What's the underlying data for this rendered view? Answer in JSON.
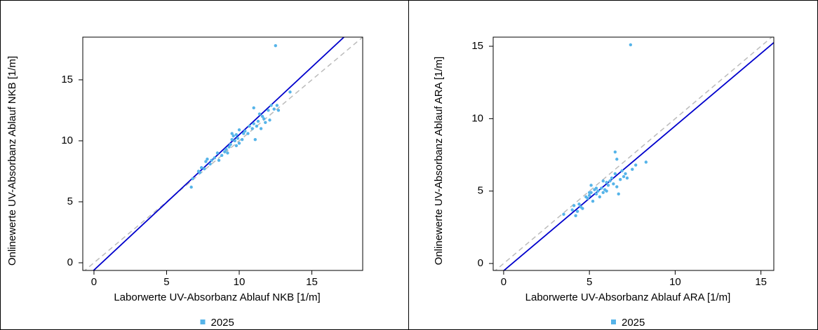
{
  "chart_data": [
    {
      "type": "scatter",
      "x_label": "Laborwerte UV-Absorbanz Ablauf NKB [1/m]",
      "y_label": "Onlinewerte UV-Absorbanz Ablauf NKB [1/m]",
      "xlim": [
        -0.77,
        18.5
      ],
      "ylim": [
        -0.63,
        18.5
      ],
      "xticks": [
        0,
        5,
        10,
        15
      ],
      "yticks": [
        0,
        5,
        10,
        15
      ],
      "x": [
        6.7,
        6.8,
        7.2,
        7.4,
        7.6,
        7.7,
        7.8,
        8.0,
        8.1,
        8.3,
        8.5,
        8.6,
        8.8,
        9.0,
        9.1,
        9.2,
        9.3,
        9.4,
        9.5,
        9.5,
        9.6,
        9.7,
        9.8,
        9.8,
        9.9,
        10.0,
        10.0,
        10.2,
        10.4,
        10.6,
        10.7,
        10.9,
        11.0,
        11.0,
        11.1,
        11.2,
        11.3,
        11.4,
        11.5,
        11.6,
        11.8,
        12.0,
        12.1,
        12.2,
        12.4,
        12.5,
        12.6,
        12.7,
        13.5,
        7.3,
        10.3,
        11.7
      ],
      "series": [
        {
          "name": "2025",
          "color": "#56b4e9",
          "values": [
            6.2,
            6.9,
            7.5,
            7.8,
            7.7,
            8.3,
            8.5,
            8.1,
            8.4,
            8.6,
            9.0,
            8.4,
            8.8,
            9.1,
            9.3,
            9.0,
            9.5,
            9.7,
            10.1,
            10.6,
            10.4,
            10.0,
            10.5,
            9.6,
            10.2,
            9.8,
            10.9,
            10.1,
            10.8,
            10.6,
            11.2,
            11.0,
            12.7,
            11.4,
            10.1,
            11.2,
            11.6,
            12.2,
            11.0,
            12.0,
            11.5,
            12.5,
            11.7,
            12.9,
            12.6,
            17.8,
            12.9,
            12.5,
            14.0,
            7.4,
            10.6,
            11.8
          ]
        }
      ],
      "reference_lines": [
        {
          "intercept": 0,
          "slope": 1,
          "color": "#bbbbbb",
          "dashed": true
        },
        {
          "intercept": -0.6,
          "slope": 1.11,
          "color": "#0000cc",
          "dashed": false
        }
      ]
    },
    {
      "type": "scatter",
      "x_label": "Laborwerte UV-Absorbanz Ablauf ARA [1/m]",
      "y_label": "Onlinewerte UV-Absorbanz Ablauf ARA [1/m]",
      "xlim": [
        -0.61,
        15.75
      ],
      "ylim": [
        -0.48,
        15.63
      ],
      "xticks": [
        0,
        5,
        10,
        15
      ],
      "yticks": [
        0,
        5,
        10,
        15
      ],
      "x": [
        3.5,
        4.0,
        4.1,
        4.2,
        4.3,
        4.4,
        4.5,
        4.6,
        4.8,
        5.0,
        5.1,
        5.1,
        5.2,
        5.3,
        5.4,
        5.5,
        5.6,
        5.7,
        5.8,
        5.8,
        5.9,
        6.0,
        6.1,
        6.2,
        6.3,
        6.4,
        6.5,
        6.5,
        6.6,
        6.6,
        6.7,
        6.8,
        6.9,
        7.0,
        7.1,
        7.2,
        7.4,
        7.5,
        7.7,
        8.3,
        5.0,
        5.4,
        6.0,
        4.9
      ],
      "series": [
        {
          "name": "2025",
          "color": "#56b4e9",
          "values": [
            3.4,
            3.7,
            4.0,
            3.3,
            3.6,
            4.1,
            3.9,
            3.8,
            4.6,
            4.7,
            4.9,
            5.4,
            4.3,
            5.1,
            4.8,
            5.0,
            4.6,
            5.2,
            5.7,
            4.9,
            5.1,
            5.0,
            5.4,
            5.7,
            5.9,
            5.5,
            7.7,
            6.2,
            7.2,
            5.3,
            4.8,
            5.8,
            6.4,
            6.0,
            6.2,
            5.9,
            15.1,
            6.5,
            6.8,
            7.0,
            4.9,
            5.2,
            5.6,
            4.5
          ]
        }
      ],
      "reference_lines": [
        {
          "intercept": 0,
          "slope": 1,
          "color": "#bbbbbb",
          "dashed": true
        },
        {
          "intercept": -0.5,
          "slope": 1.0,
          "color": "#0000cc",
          "dashed": false
        }
      ]
    }
  ]
}
